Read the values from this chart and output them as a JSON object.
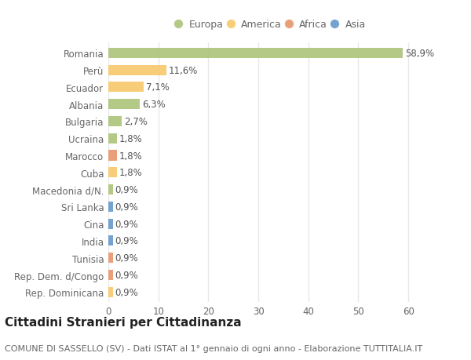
{
  "categories": [
    "Romania",
    "Perù",
    "Ecuador",
    "Albania",
    "Bulgaria",
    "Ucraina",
    "Marocco",
    "Cuba",
    "Macedonia d/N.",
    "Sri Lanka",
    "Cina",
    "India",
    "Tunisia",
    "Rep. Dem. d/Congo",
    "Rep. Dominicana"
  ],
  "values": [
    58.9,
    11.6,
    7.1,
    6.3,
    2.7,
    1.8,
    1.8,
    1.8,
    0.9,
    0.9,
    0.9,
    0.9,
    0.9,
    0.9,
    0.9
  ],
  "labels": [
    "58,9%",
    "11,6%",
    "7,1%",
    "6,3%",
    "2,7%",
    "1,8%",
    "1,8%",
    "1,8%",
    "0,9%",
    "0,9%",
    "0,9%",
    "0,9%",
    "0,9%",
    "0,9%",
    "0,9%"
  ],
  "colors": [
    "#adc47a",
    "#f7c86a",
    "#f7c86a",
    "#adc47a",
    "#adc47a",
    "#adc47a",
    "#e8956d",
    "#f7c86a",
    "#adc47a",
    "#6699cc",
    "#6699cc",
    "#6699cc",
    "#e8956d",
    "#e8956d",
    "#f7c86a"
  ],
  "legend_labels": [
    "Europa",
    "America",
    "Africa",
    "Asia"
  ],
  "legend_colors": [
    "#adc47a",
    "#f7c86a",
    "#e8956d",
    "#6699cc"
  ],
  "title": "Cittadini Stranieri per Cittadinanza",
  "subtitle": "COMUNE DI SASSELLO (SV) - Dati ISTAT al 1° gennaio di ogni anno - Elaborazione TUTTITALIA.IT",
  "xlim": [
    0,
    65
  ],
  "xticks": [
    0,
    10,
    20,
    30,
    40,
    50,
    60
  ],
  "background_color": "#ffffff",
  "plot_bg_color": "#f5f5f5",
  "grid_color": "#e8e8e8",
  "bar_height": 0.6,
  "title_fontsize": 11,
  "subtitle_fontsize": 8,
  "tick_fontsize": 8.5,
  "label_fontsize": 8.5
}
